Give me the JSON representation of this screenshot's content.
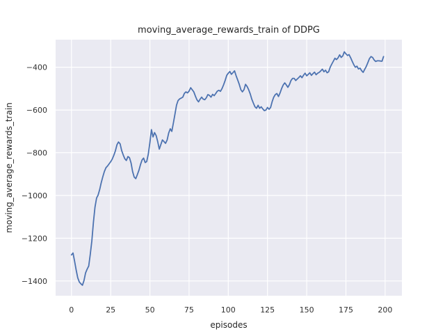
{
  "chart_data": {
    "type": "line",
    "title": "moving_average_rewards_train of DDPG",
    "xlabel": "episodes",
    "ylabel": "moving_average_rewards_train",
    "series_name": "moving_average_rewards_train",
    "x_description": "episode index, one point per episode",
    "x_start": 0,
    "x_step": 1,
    "values": [
      -1278,
      -1269,
      -1308,
      -1348,
      -1385,
      -1405,
      -1413,
      -1420,
      -1398,
      -1362,
      -1345,
      -1330,
      -1276,
      -1212,
      -1124,
      -1055,
      -1012,
      -998,
      -972,
      -940,
      -912,
      -888,
      -870,
      -862,
      -852,
      -842,
      -830,
      -812,
      -792,
      -763,
      -750,
      -758,
      -790,
      -810,
      -828,
      -836,
      -818,
      -823,
      -848,
      -888,
      -914,
      -921,
      -903,
      -882,
      -856,
      -834,
      -825,
      -846,
      -841,
      -806,
      -752,
      -692,
      -726,
      -706,
      -720,
      -748,
      -783,
      -762,
      -740,
      -748,
      -756,
      -740,
      -708,
      -688,
      -700,
      -660,
      -620,
      -577,
      -556,
      -548,
      -544,
      -540,
      -522,
      -515,
      -520,
      -512,
      -496,
      -505,
      -515,
      -535,
      -552,
      -562,
      -550,
      -540,
      -549,
      -552,
      -543,
      -528,
      -532,
      -540,
      -527,
      -533,
      -523,
      -512,
      -508,
      -513,
      -500,
      -482,
      -462,
      -438,
      -428,
      -420,
      -433,
      -425,
      -417,
      -440,
      -460,
      -480,
      -505,
      -515,
      -505,
      -480,
      -490,
      -505,
      -525,
      -550,
      -568,
      -585,
      -592,
      -578,
      -592,
      -585,
      -595,
      -603,
      -600,
      -588,
      -597,
      -588,
      -560,
      -540,
      -528,
      -523,
      -537,
      -520,
      -500,
      -483,
      -473,
      -483,
      -494,
      -481,
      -462,
      -452,
      -452,
      -462,
      -455,
      -448,
      -440,
      -449,
      -437,
      -428,
      -440,
      -433,
      -426,
      -438,
      -430,
      -423,
      -435,
      -428,
      -424,
      -417,
      -409,
      -421,
      -414,
      -426,
      -421,
      -400,
      -385,
      -372,
      -358,
      -364,
      -356,
      -342,
      -354,
      -347,
      -328,
      -337,
      -345,
      -341,
      -355,
      -372,
      -388,
      -400,
      -395,
      -408,
      -404,
      -416,
      -424,
      -410,
      -396,
      -378,
      -360,
      -350,
      -354,
      -366,
      -373,
      -370,
      -370,
      -371,
      -372,
      -350
    ],
    "xticks": [
      0,
      25,
      50,
      75,
      100,
      125,
      150,
      175,
      200
    ],
    "yticks": [
      -400,
      -600,
      -800,
      -1000,
      -1200,
      -1400
    ],
    "xlim": [
      -10.1,
      210.7
    ],
    "ylim": [
      -1469,
      -271
    ],
    "grid": true,
    "legend": null,
    "colors": {
      "line": "#4c72b0",
      "plot_bg": "#eaeaf2",
      "grid": "#ffffff",
      "figure_bg": "#ffffff",
      "text": "#262626"
    }
  }
}
